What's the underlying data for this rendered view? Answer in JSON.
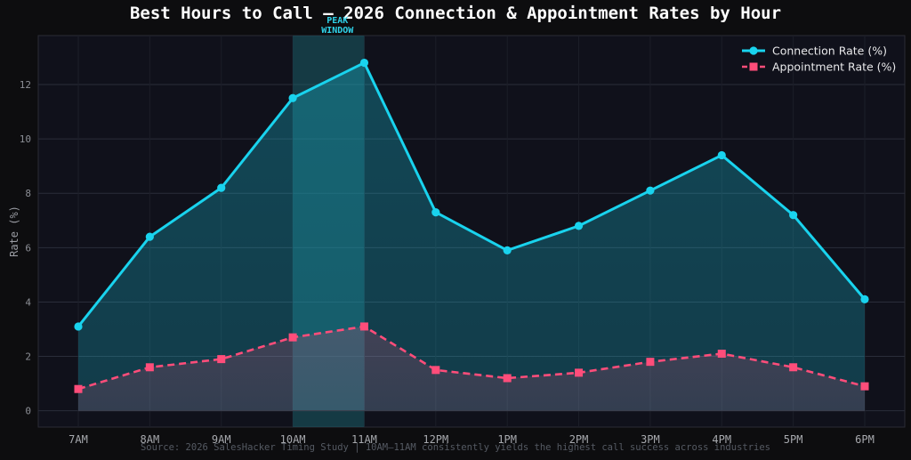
{
  "title": "Best Hours to Call — 2026 Connection & Appointment Rates by Hour",
  "source": "Source: 2026 SalesHacker Timing Study  |  10AM–11AM consistently yields the highest call success across industries",
  "colors": {
    "connection": "#19d3ee",
    "appointment": "#ff4d7a",
    "peak": "#1f6f7a",
    "plot_bg": "#10111b"
  },
  "chart_data": {
    "type": "line",
    "title": "Best Hours to Call — 2026 Connection & Appointment Rates by Hour",
    "xlabel": "",
    "ylabel": "Rate (%)",
    "categories": [
      "7AM",
      "8AM",
      "9AM",
      "10AM",
      "11AM",
      "12PM",
      "1PM",
      "2PM",
      "3PM",
      "4PM",
      "5PM",
      "6PM"
    ],
    "ylim": [
      -0.6,
      13.8
    ],
    "yticks": [
      0,
      2,
      4,
      6,
      8,
      10,
      12
    ],
    "grid": true,
    "legend_position": "top-right",
    "highlight": {
      "label": "PEAK WINDOW",
      "label_lines": [
        "PEAK",
        "WINDOW"
      ],
      "from": "10AM",
      "to": "11AM"
    },
    "series": [
      {
        "name": "Connection Rate (%)",
        "style": "solid",
        "marker": "circle",
        "values": [
          3.1,
          6.4,
          8.2,
          11.5,
          12.8,
          7.3,
          5.9,
          6.8,
          8.1,
          9.4,
          7.2,
          4.1
        ]
      },
      {
        "name": "Appointment Rate (%)",
        "style": "dashed",
        "marker": "square",
        "values": [
          0.8,
          1.6,
          1.9,
          2.7,
          3.1,
          1.5,
          1.2,
          1.4,
          1.8,
          2.1,
          1.6,
          0.9
        ]
      }
    ]
  }
}
